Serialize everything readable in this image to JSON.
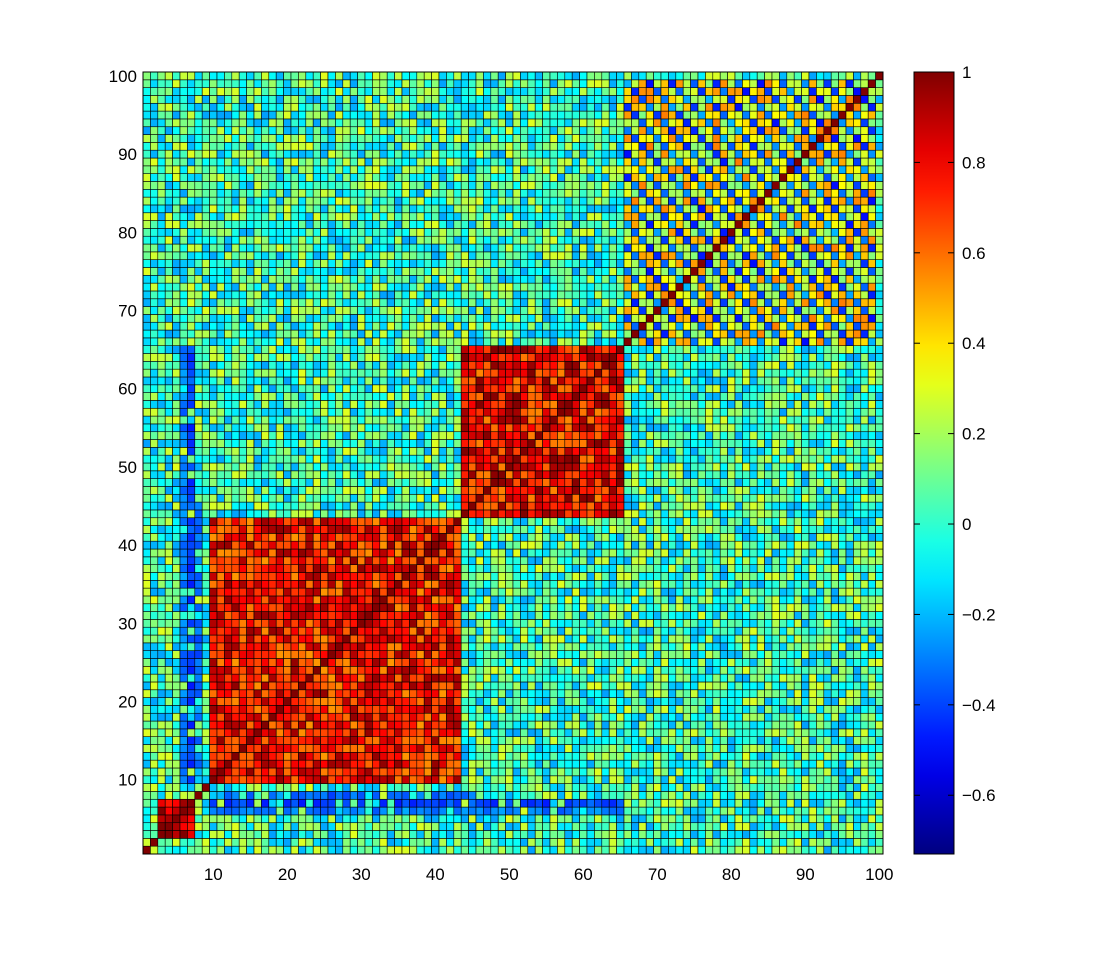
{
  "chart_data": {
    "type": "heatmap",
    "title": "",
    "xlabel": "",
    "ylabel": "",
    "x_range": [
      1,
      100
    ],
    "y_range": [
      1,
      100
    ],
    "grid": true,
    "x_ticks": [
      10,
      20,
      30,
      40,
      50,
      60,
      70,
      80,
      90,
      100
    ],
    "y_ticks": [
      10,
      20,
      30,
      40,
      50,
      60,
      70,
      80,
      90,
      100
    ],
    "x_tick_labels": [
      "10",
      "20",
      "30",
      "40",
      "50",
      "60",
      "70",
      "80",
      "90",
      "100"
    ],
    "y_tick_labels": [
      "10",
      "20",
      "30",
      "40",
      "50",
      "60",
      "70",
      "80",
      "90",
      "100"
    ],
    "colorbar": {
      "colormap": "jet",
      "range": [
        -0.73,
        1.0
      ],
      "position": "right",
      "ticks": [
        -0.6,
        -0.4,
        -0.2,
        0,
        0.2,
        0.4,
        0.6,
        0.8,
        1
      ],
      "tick_labels": [
        "−0.6",
        "−0.4",
        "−0.2",
        "0",
        "0.2",
        "0.4",
        "0.6",
        "0.8",
        "1"
      ]
    },
    "matrix_size": 100,
    "diagonal_value": 1.0,
    "background_value": 0.03,
    "blocks": [
      {
        "label": "block-1",
        "range": [
          3,
          7
        ],
        "value": 0.95
      },
      {
        "label": "block-2",
        "range": [
          10,
          43
        ],
        "value": 0.75
      },
      {
        "label": "block-3",
        "range": [
          44,
          65
        ],
        "value": 0.78
      },
      {
        "label": "block-4",
        "range": [
          66,
          99
        ],
        "value": 0.35
      }
    ],
    "notable_bands": [
      {
        "label": "row-col-7-negative",
        "index": 7,
        "range": [
          10,
          65
        ],
        "value": -0.4
      },
      {
        "label": "row-col-6-negative",
        "index": 6,
        "range": [
          10,
          65
        ],
        "value": -0.3
      },
      {
        "label": "row-col-8-negative",
        "index": 8,
        "range": [
          12,
          45
        ],
        "value": -0.35
      },
      {
        "label": "block-4-internal-anti",
        "range": [
          66,
          99
        ],
        "value": -0.35
      }
    ]
  }
}
